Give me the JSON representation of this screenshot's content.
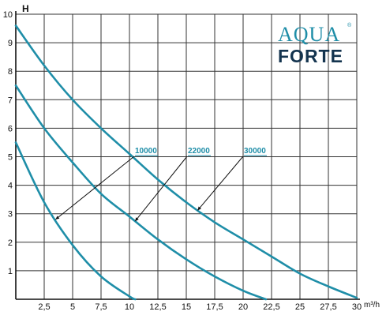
{
  "chart_data": {
    "type": "line",
    "title": "",
    "xlabel": "m³/h",
    "ylabel": "H",
    "xlim": [
      0,
      30
    ],
    "ylim": [
      0,
      10
    ],
    "x_ticks": [
      "2,5",
      "5",
      "7,5",
      "10",
      "12,5",
      "15",
      "17,5",
      "20",
      "22,5",
      "25",
      "27,5",
      "30"
    ],
    "y_ticks": [
      "1",
      "2",
      "3",
      "4",
      "5",
      "6",
      "7",
      "8",
      "9",
      "10"
    ],
    "grid": true,
    "legend": "inline-labels",
    "series": [
      {
        "name": "10000",
        "x": [
          0,
          2.5,
          5,
          7.5,
          10,
          10.5
        ],
        "y": [
          5.5,
          3.4,
          1.9,
          0.8,
          0.1,
          0
        ]
      },
      {
        "name": "22000",
        "x": [
          0,
          2.5,
          5,
          7.5,
          10,
          12.5,
          15,
          17.5,
          20,
          22
        ],
        "y": [
          7.5,
          6.0,
          4.8,
          3.7,
          2.9,
          2.1,
          1.4,
          0.8,
          0.3,
          0
        ]
      },
      {
        "name": "30000",
        "x": [
          0,
          2.5,
          5,
          7.5,
          10,
          12.5,
          15,
          17.5,
          20,
          22.5,
          25,
          27.5,
          30
        ],
        "y": [
          9.6,
          8.2,
          7.0,
          6.0,
          5.1,
          4.2,
          3.4,
          2.7,
          2.1,
          1.5,
          0.9,
          0.45,
          0.05
        ]
      }
    ]
  },
  "logo": {
    "line1": "AQUA",
    "line2": "FORTE",
    "reg": "®"
  },
  "colors": {
    "curve": "#1f8ea8",
    "grid": "#333333",
    "axis": "#111111",
    "logo_dark": "#14344f"
  }
}
